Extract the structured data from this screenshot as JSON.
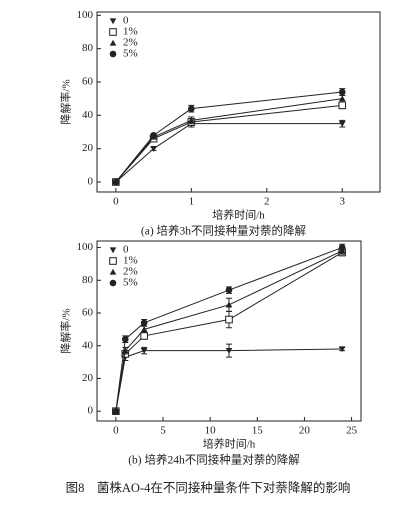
{
  "chart_data": [
    {
      "type": "line",
      "caption": "(a) 培养3h不同接种量对萘的降解",
      "xlabel": "培养时间/h",
      "ylabel": "降解率/%",
      "x": [
        0,
        0.5,
        1,
        3
      ],
      "xlim": [
        -0.25,
        3.5
      ],
      "xticks": [
        0,
        1,
        2,
        3
      ],
      "ylim": [
        -6,
        102
      ],
      "yticks": [
        0,
        20,
        40,
        60,
        80,
        100
      ],
      "series": [
        {
          "name": "0",
          "color": "#222",
          "marker": "v",
          "values": [
            0,
            20,
            35,
            35
          ],
          "errors": [
            1,
            1,
            2,
            2
          ]
        },
        {
          "name": "1%",
          "color": "#222",
          "marker": "s",
          "values": [
            0,
            26,
            36,
            46
          ],
          "errors": [
            1,
            1,
            2,
            2
          ]
        },
        {
          "name": "2%",
          "color": "#222",
          "marker": "^",
          "values": [
            0,
            27,
            37,
            50
          ],
          "errors": [
            1,
            1,
            2,
            2
          ]
        },
        {
          "name": "5%",
          "color": "#222",
          "marker": "o",
          "values": [
            0,
            28,
            44,
            54
          ],
          "errors": [
            1,
            1,
            2,
            2
          ]
        }
      ]
    },
    {
      "type": "line",
      "caption": "(b) 培养24h不同接种量对萘的降解",
      "xlabel": "培养时间/h",
      "ylabel": "降解率/%",
      "x": [
        0,
        1,
        3,
        12,
        24
      ],
      "xlim": [
        -2,
        26
      ],
      "xticks": [
        0,
        5,
        10,
        15,
        20,
        25
      ],
      "ylim": [
        -6,
        104
      ],
      "yticks": [
        0,
        20,
        40,
        60,
        80,
        100
      ],
      "series": [
        {
          "name": "0",
          "color": "#222",
          "marker": "v",
          "values": [
            0,
            33,
            37,
            37,
            38
          ],
          "errors": [
            1,
            2,
            2,
            4,
            1
          ]
        },
        {
          "name": "1%",
          "color": "#222",
          "marker": "s",
          "values": [
            0,
            35,
            46,
            56,
            97
          ],
          "errors": [
            1,
            2,
            2,
            5,
            2
          ]
        },
        {
          "name": "2%",
          "color": "#222",
          "marker": "^",
          "values": [
            0,
            37,
            50,
            65,
            98
          ],
          "errors": [
            1,
            2,
            2,
            4,
            2
          ]
        },
        {
          "name": "5%",
          "color": "#222",
          "marker": "o",
          "values": [
            0,
            44,
            54,
            74,
            100
          ],
          "errors": [
            1,
            2,
            2,
            2,
            2
          ]
        }
      ]
    }
  ],
  "figure_caption": "图8　菌株AO-4在不同接种量条件下对萘降解的影响"
}
